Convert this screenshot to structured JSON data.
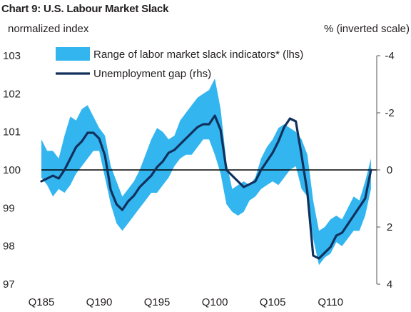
{
  "title": "Chart 9:  U.S. Labour Market Slack",
  "chart_data": {
    "type": "line",
    "title": "Chart 9:  U.S. Labour Market Slack",
    "y_left_label": "normalized index",
    "y_right_label": "% (inverted scale)",
    "x_ticks": [
      "Q185",
      "Q190",
      "Q195",
      "Q100",
      "Q105",
      "Q110"
    ],
    "y_left_ticks": [
      "103",
      "102",
      "101",
      "100",
      "99",
      "98",
      "97"
    ],
    "y_right_ticks": [
      "-4",
      "-2",
      "0",
      "2",
      "4"
    ],
    "y_left_range": [
      97,
      103
    ],
    "y_right_range": [
      4,
      -4
    ],
    "y_right_inverted": true,
    "x_range": [
      1985.0,
      2014.0
    ],
    "zero_line": 100,
    "legend_position": "top-left",
    "legend": [
      {
        "label": "Range of labor market slack indicators* (lhs)",
        "type": "band",
        "color": "#33b5f0"
      },
      {
        "label": "Unemployment gap (rhs)",
        "type": "line",
        "color": "#12305c"
      }
    ],
    "series": [
      {
        "name": "Range of labor market slack indicators* (lhs)",
        "type": "band",
        "color": "#33b5f0",
        "x": [
          1985.0,
          1985.5,
          1986.0,
          1986.5,
          1987.0,
          1987.5,
          1988.0,
          1988.5,
          1989.0,
          1989.5,
          1990.0,
          1990.5,
          1991.0,
          1991.5,
          1992.0,
          1992.5,
          1993.0,
          1993.5,
          1994.0,
          1994.5,
          1995.0,
          1995.5,
          1996.0,
          1996.5,
          1997.0,
          1997.5,
          1998.0,
          1998.5,
          1999.0,
          1999.5,
          2000.0,
          2000.5,
          2001.0,
          2001.5,
          2002.0,
          2002.5,
          2003.0,
          2003.5,
          2004.0,
          2004.5,
          2005.0,
          2005.5,
          2006.0,
          2006.5,
          2007.0,
          2007.5,
          2008.0,
          2008.5,
          2009.0,
          2009.5,
          2010.0,
          2010.5,
          2011.0,
          2011.5,
          2012.0,
          2012.5,
          2013.0,
          2013.5
        ],
        "high": [
          100.8,
          100.5,
          100.5,
          100.3,
          100.9,
          101.4,
          101.3,
          101.6,
          101.7,
          101.4,
          101.1,
          100.9,
          100.1,
          99.7,
          99.3,
          99.5,
          99.7,
          100.0,
          100.4,
          100.8,
          101.1,
          101.0,
          100.8,
          100.9,
          101.3,
          101.5,
          101.7,
          101.9,
          102.0,
          102.1,
          102.4,
          101.6,
          100.2,
          99.5,
          99.6,
          99.7,
          99.6,
          99.8,
          100.3,
          100.6,
          100.8,
          101.1,
          101.2,
          101.1,
          101.0,
          100.8,
          100.4,
          99.2,
          98.4,
          98.5,
          98.7,
          98.8,
          98.7,
          99.0,
          99.3,
          99.2,
          99.7,
          100.3
        ],
        "low": [
          99.8,
          99.6,
          99.3,
          99.5,
          99.4,
          99.6,
          99.9,
          100.1,
          100.3,
          100.5,
          100.5,
          99.8,
          99.1,
          98.6,
          98.4,
          98.6,
          98.8,
          99.0,
          99.2,
          99.4,
          99.4,
          99.6,
          99.8,
          100.1,
          100.3,
          100.4,
          100.4,
          100.6,
          100.8,
          100.8,
          100.4,
          99.9,
          99.1,
          98.9,
          98.8,
          98.9,
          99.2,
          99.3,
          99.5,
          99.6,
          99.7,
          99.6,
          99.8,
          100.0,
          100.1,
          99.5,
          99.3,
          98.2,
          97.5,
          97.7,
          97.8,
          98.1,
          98.0,
          98.2,
          98.4,
          98.4,
          98.8,
          99.5
        ]
      },
      {
        "name": "Unemployment gap (rhs)",
        "type": "line",
        "color": "#12305c",
        "x": [
          1985.0,
          1985.5,
          1986.0,
          1986.5,
          1987.0,
          1987.5,
          1988.0,
          1988.5,
          1989.0,
          1989.5,
          1990.0,
          1990.5,
          1991.0,
          1991.5,
          1992.0,
          1992.5,
          1993.0,
          1993.5,
          1994.0,
          1994.5,
          1995.0,
          1995.5,
          1996.0,
          1996.5,
          1997.0,
          1997.5,
          1998.0,
          1998.5,
          1999.0,
          1999.5,
          2000.0,
          2000.5,
          2001.0,
          2001.5,
          2002.0,
          2002.5,
          2003.0,
          2003.5,
          2004.0,
          2004.5,
          2005.0,
          2005.5,
          2006.0,
          2006.5,
          2007.0,
          2007.5,
          2008.0,
          2008.5,
          2009.0,
          2009.5,
          2010.0,
          2010.5,
          2011.0,
          2011.5,
          2012.0,
          2012.5,
          2013.0,
          2013.5
        ],
        "y": [
          0.4,
          0.3,
          0.2,
          0.3,
          0.0,
          -0.4,
          -0.8,
          -1.0,
          -1.3,
          -1.3,
          -1.1,
          -0.5,
          0.7,
          1.2,
          1.4,
          1.1,
          0.9,
          0.6,
          0.4,
          0.2,
          -0.1,
          -0.3,
          -0.6,
          -0.7,
          -0.9,
          -1.1,
          -1.3,
          -1.5,
          -1.6,
          -1.6,
          -1.9,
          -1.4,
          0.0,
          0.2,
          0.4,
          0.6,
          0.5,
          0.4,
          0.0,
          -0.3,
          -0.6,
          -1.0,
          -1.5,
          -1.8,
          -1.7,
          -0.5,
          0.8,
          3.0,
          3.1,
          2.9,
          2.7,
          2.3,
          2.2,
          1.9,
          1.6,
          1.3,
          1.0,
          0.0
        ]
      }
    ]
  }
}
